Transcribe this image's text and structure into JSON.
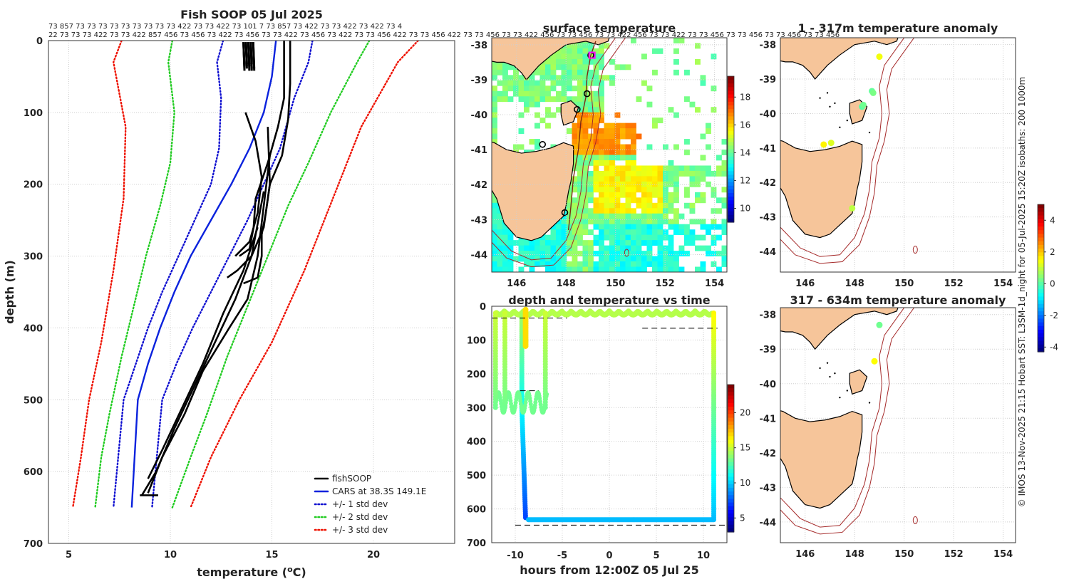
{
  "colors": {
    "fishsoop": "#000000",
    "cars": "#0a22dd",
    "std1": "#1010d0",
    "std2": "#22cc22",
    "std3": "#ee1100",
    "land": "#f6c59a",
    "isobath": "#a52a2a",
    "dash": "#000000"
  },
  "chart_data": [
    {
      "id": "profile",
      "type": "line",
      "title": "Fish SOOP 05 Jul 2025",
      "xlabel_prefix": "temperature (",
      "xlabel_sup": "o",
      "xlabel_suffix": "C)",
      "ylabel": "depth (m)",
      "xlim": [
        4,
        24
      ],
      "ylim": [
        0,
        700
      ],
      "xticks": [
        5,
        10,
        15,
        20
      ],
      "yticks": [
        0,
        100,
        200,
        300,
        400,
        500,
        600,
        700
      ],
      "grid": true,
      "top_labels_row1": "73 857 73 73 73 73 73 73 73 73 73 422 73 73 422 73 101 7 73 857 73 422 73 73 422 73 422 73 4",
      "top_labels_row2": "22 73 73 73 422 73 73 422 857 456 73 456 73 422 73 456 73 73 422 73 456 73 422 73 73 456 422 73 73 456 422 73 73 456 73 73 422 456 73 73 456 73 73 422 456 73 73 422 73 73 456 73 73 456 73 73 456 73 73 456",
      "legend_position": "bottom-right",
      "series": [
        {
          "name": "fishSOOP",
          "color_key": "fishsoop",
          "style": "solid",
          "profiles": [
            [
              [
                15.9,
                0
              ],
              [
                15.9,
                60
              ],
              [
                15.8,
                110
              ],
              [
                15.5,
                160
              ],
              [
                14.9,
                200
              ],
              [
                14.7,
                240
              ],
              [
                14.5,
                270
              ],
              [
                14.5,
                300
              ],
              [
                14.3,
                330
              ],
              [
                13.6,
                338
              ]
            ],
            [
              [
                15.6,
                0
              ],
              [
                15.6,
                80
              ],
              [
                15.3,
                120
              ],
              [
                14.8,
                170
              ],
              [
                14.2,
                220
              ],
              [
                14.1,
                260
              ],
              [
                13.9,
                290
              ],
              [
                13.4,
                300
              ]
            ],
            [
              [
                14.8,
                120
              ],
              [
                14.9,
                200
              ],
              [
                14.6,
                260
              ],
              [
                14.0,
                300
              ],
              [
                13.3,
                320
              ],
              [
                12.8,
                330
              ]
            ],
            [
              [
                13.7,
                100
              ],
              [
                14.2,
                140
              ],
              [
                14.5,
                190
              ],
              [
                14.3,
                240
              ],
              [
                13.9,
                280
              ],
              [
                13.2,
                300
              ]
            ],
            [
              [
                14.9,
                160
              ],
              [
                14.6,
                230
              ],
              [
                14.3,
                300
              ],
              [
                13.8,
                360
              ],
              [
                12.9,
                400
              ],
              [
                11.6,
                460
              ],
              [
                10.7,
                520
              ],
              [
                9.6,
                580
              ],
              [
                8.9,
                630
              ]
            ],
            [
              [
                14.6,
                210
              ],
              [
                14.0,
                300
              ],
              [
                13.2,
                360
              ],
              [
                12.2,
                420
              ],
              [
                11.2,
                480
              ],
              [
                10.2,
                540
              ],
              [
                9.3,
                600
              ],
              [
                8.6,
                633
              ]
            ],
            [
              [
                14.3,
                260
              ],
              [
                13.6,
                320
              ],
              [
                12.6,
                380
              ],
              [
                11.6,
                450
              ],
              [
                10.6,
                510
              ],
              [
                9.6,
                570
              ],
              [
                8.9,
                610
              ]
            ],
            [
              [
                8.5,
                633
              ],
              [
                9.4,
                633
              ]
            ]
          ]
        },
        {
          "name": "CARS at 38.3S 149.1E",
          "color_key": "cars",
          "style": "solid",
          "x": [
            15.2,
            15.0,
            14.6,
            13.9,
            13.0,
            12.0,
            11.0,
            10.2,
            9.5,
            8.9,
            8.4,
            8.1
          ],
          "y": [
            0,
            50,
            100,
            150,
            200,
            250,
            300,
            350,
            400,
            450,
            500,
            650
          ]
        },
        {
          "name": "+/- 1 std dev",
          "color_key": "std1",
          "style": "dotted",
          "x_left": [
            12.6,
            12.3,
            12.5,
            12.4,
            12.0,
            11.2,
            10.4,
            9.6,
            8.9,
            8.3,
            7.7,
            7.2
          ],
          "x_right": [
            17.0,
            16.8,
            16.1,
            15.4,
            14.6,
            13.8,
            12.9,
            12.0,
            11.1,
            10.3,
            9.6,
            9.1
          ],
          "y": [
            0,
            30,
            80,
            150,
            200,
            250,
            300,
            350,
            400,
            450,
            500,
            650
          ]
        },
        {
          "name": "+/- 2 std dev",
          "color_key": "std2",
          "style": "dotted",
          "x_left": [
            10.1,
            9.9,
            10.2,
            10.0,
            9.5,
            8.8,
            8.2,
            7.6,
            7.0,
            6.6,
            6.3
          ],
          "x_right": [
            19.8,
            19.2,
            17.9,
            16.8,
            15.8,
            14.8,
            13.8,
            12.8,
            11.8,
            11.0,
            10.1
          ],
          "y": [
            0,
            30,
            100,
            170,
            230,
            300,
            370,
            440,
            520,
            580,
            650
          ]
        },
        {
          "name": "+/- 3 std dev",
          "color_key": "std3",
          "style": "dotted",
          "x_left": [
            7.6,
            7.2,
            7.8,
            7.7,
            7.2,
            6.6,
            6.0,
            5.6,
            5.2
          ],
          "x_right": [
            22.2,
            21.2,
            19.4,
            18.0,
            16.6,
            15.0,
            13.4,
            12.0,
            11.0
          ],
          "y": [
            0,
            30,
            120,
            220,
            320,
            420,
            500,
            580,
            650
          ]
        }
      ]
    },
    {
      "id": "sst",
      "type": "heatmap",
      "title": "surface temperature",
      "xlim": [
        145,
        154.5
      ],
      "ylim": [
        -44.5,
        -37.8
      ],
      "xticks": [
        146,
        148,
        150,
        152,
        154
      ],
      "yticks": [
        -38,
        -39,
        -40,
        -41,
        -42,
        -43,
        -44
      ],
      "colorbar": {
        "ticks": [
          10,
          12,
          14,
          16,
          18
        ],
        "range": [
          9,
          19.5
        ]
      }
    },
    {
      "id": "depth_time",
      "type": "scatter",
      "title": "depth and temperature vs time",
      "xlabel": "hours from 12:00Z 05 Jul 25",
      "xlim": [
        -12.5,
        12.5
      ],
      "ylim": [
        0,
        700
      ],
      "xticks": [
        -10,
        -5,
        0,
        5,
        10
      ],
      "yticks": [
        0,
        100,
        200,
        300,
        400,
        500,
        600,
        700
      ],
      "colorbar": {
        "ticks": [
          5,
          10,
          15,
          20
        ],
        "range": [
          3,
          24
        ]
      }
    },
    {
      "id": "anom1",
      "type": "scatter",
      "title": "1 - 317m temperature anomaly",
      "xlim": [
        145,
        154.5
      ],
      "ylim": [
        -44.6,
        -37.8
      ],
      "xticks": [
        146,
        148,
        150,
        152,
        154
      ],
      "yticks": [
        -38,
        -39,
        -40,
        -41,
        -42,
        -43,
        -44
      ],
      "points": [
        {
          "lon": 149.0,
          "lat": -38.35,
          "anom": 1.4
        },
        {
          "lon": 148.7,
          "lat": -39.35,
          "anom": 0.1
        },
        {
          "lon": 148.75,
          "lat": -39.4,
          "anom": 0.3
        },
        {
          "lon": 148.3,
          "lat": -39.8,
          "anom": 0.0
        },
        {
          "lon": 148.35,
          "lat": -39.75,
          "anom": 0.2
        },
        {
          "lon": 146.75,
          "lat": -40.9,
          "anom": 1.6
        },
        {
          "lon": 147.05,
          "lat": -40.85,
          "anom": 1.2
        },
        {
          "lon": 147.9,
          "lat": -42.75,
          "anom": 0.9
        }
      ],
      "colorbar": {
        "ticks": [
          4,
          2,
          0,
          -2,
          -4
        ],
        "range": [
          -4.3,
          5.0
        ]
      }
    },
    {
      "id": "anom2",
      "type": "scatter",
      "title": "317 - 634m temperature anomaly",
      "xlim": [
        145,
        154.5
      ],
      "ylim": [
        -44.6,
        -37.8
      ],
      "xticks": [
        146,
        148,
        150,
        152,
        154
      ],
      "yticks": [
        -38,
        -39,
        -40,
        -41,
        -42,
        -43,
        -44
      ],
      "points": [
        {
          "lon": 149.0,
          "lat": -38.3,
          "anom": 0.2
        },
        {
          "lon": 148.8,
          "lat": -39.35,
          "anom": 1.5
        }
      ]
    }
  ],
  "side_text": "© IMOS 13-Nov-2025 21:15 Hobart SST: L3SM-1d_night for 05-Jul-2025 15:20Z isobaths: 200  1000m"
}
